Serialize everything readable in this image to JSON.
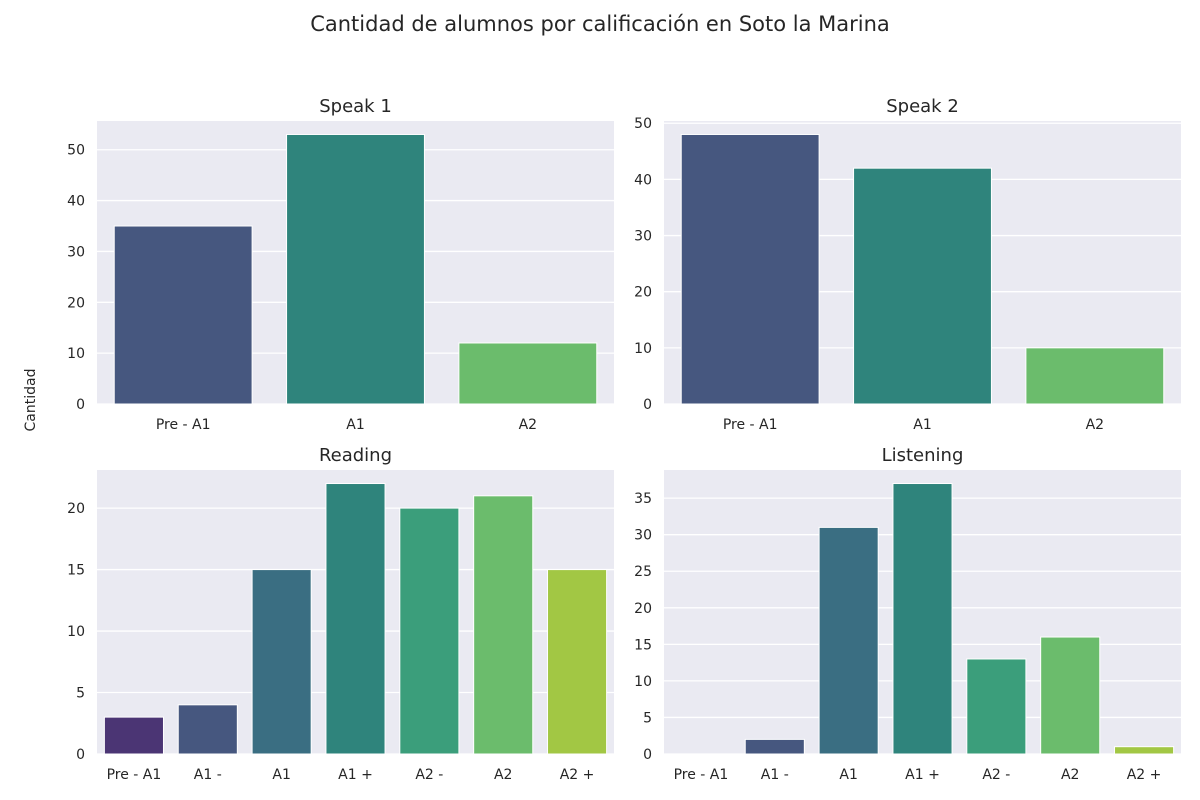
{
  "figure": {
    "title": "Cantidad de alumnos por calificación en Soto la Marina",
    "ylabel": "Cantidad"
  },
  "chart_data": [
    {
      "type": "bar",
      "title": "Speak 1",
      "categories": [
        "Pre - A1",
        "A1",
        "A2"
      ],
      "values": [
        35,
        53,
        12
      ],
      "colors": [
        "#46577f",
        "#2f847c",
        "#6bbc6c"
      ],
      "ylim": [
        0,
        55.65
      ],
      "yticks": [
        0,
        10,
        20,
        30,
        40,
        50
      ],
      "grid": true
    },
    {
      "type": "bar",
      "title": "Speak 2",
      "categories": [
        "Pre - A1",
        "A1",
        "A2"
      ],
      "values": [
        48,
        42,
        10
      ],
      "colors": [
        "#46577f",
        "#2f847c",
        "#6bbc6c"
      ],
      "ylim": [
        0,
        50.4
      ],
      "yticks": [
        0,
        10,
        20,
        30,
        40,
        50
      ],
      "grid": true
    },
    {
      "type": "bar",
      "title": "Reading",
      "categories": [
        "Pre - A1",
        "A1 -",
        "A1",
        "A1 +",
        "A2 -",
        "A2",
        "A2 +"
      ],
      "values": [
        3,
        4,
        15,
        22,
        20,
        21,
        15
      ],
      "colors": [
        "#4b3574",
        "#46577f",
        "#3a6e82",
        "#2f847c",
        "#3b9e7b",
        "#6bbc6c",
        "#a2c744"
      ],
      "ylim": [
        0,
        23.1
      ],
      "yticks": [
        0,
        5,
        10,
        15,
        20
      ],
      "grid": true
    },
    {
      "type": "bar",
      "title": "Listening",
      "categories": [
        "Pre - A1",
        "A1 -",
        "A1",
        "A1 +",
        "A2 -",
        "A2",
        "A2 +"
      ],
      "values": [
        0,
        2,
        31,
        37,
        13,
        16,
        1
      ],
      "colors": [
        "#4b3574",
        "#46577f",
        "#3a6e82",
        "#2f847c",
        "#3b9e7b",
        "#6bbc6c",
        "#a2c744"
      ],
      "ylim": [
        0,
        38.85
      ],
      "yticks": [
        0,
        5,
        10,
        15,
        20,
        25,
        30,
        35
      ],
      "grid": true
    }
  ]
}
